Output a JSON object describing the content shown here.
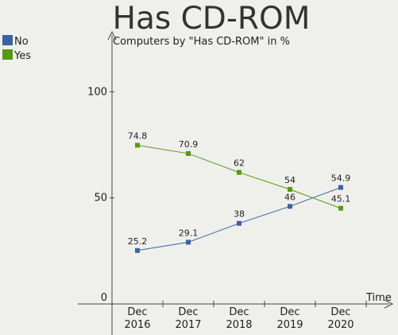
{
  "chart_data": {
    "type": "line",
    "title": "Has CD-ROM",
    "subtitle": "Computers by \"Has CD-ROM\" in %",
    "xlabel": "Time",
    "ylabel": "",
    "ylim": [
      0,
      114
    ],
    "yticks": [
      0,
      50,
      100
    ],
    "grid": false,
    "legend_position": "top-left",
    "categories": [
      [
        "Dec",
        "2016"
      ],
      [
        "Dec",
        "2017"
      ],
      [
        "Dec",
        "2018"
      ],
      [
        "Dec",
        "2019"
      ],
      [
        "Dec",
        "2020"
      ]
    ],
    "series": [
      {
        "name": "No",
        "color": "#3a63a3",
        "values": [
          25.2,
          29.1,
          38,
          46,
          54.9
        ],
        "labels": [
          "25.2",
          "29.1",
          "38",
          "46",
          "54.9"
        ]
      },
      {
        "name": "Yes",
        "color": "#559a12",
        "values": [
          74.8,
          70.9,
          62,
          54,
          45.1
        ],
        "labels": [
          "74.8",
          "70.9",
          "62",
          "54",
          "45.1"
        ]
      }
    ]
  }
}
